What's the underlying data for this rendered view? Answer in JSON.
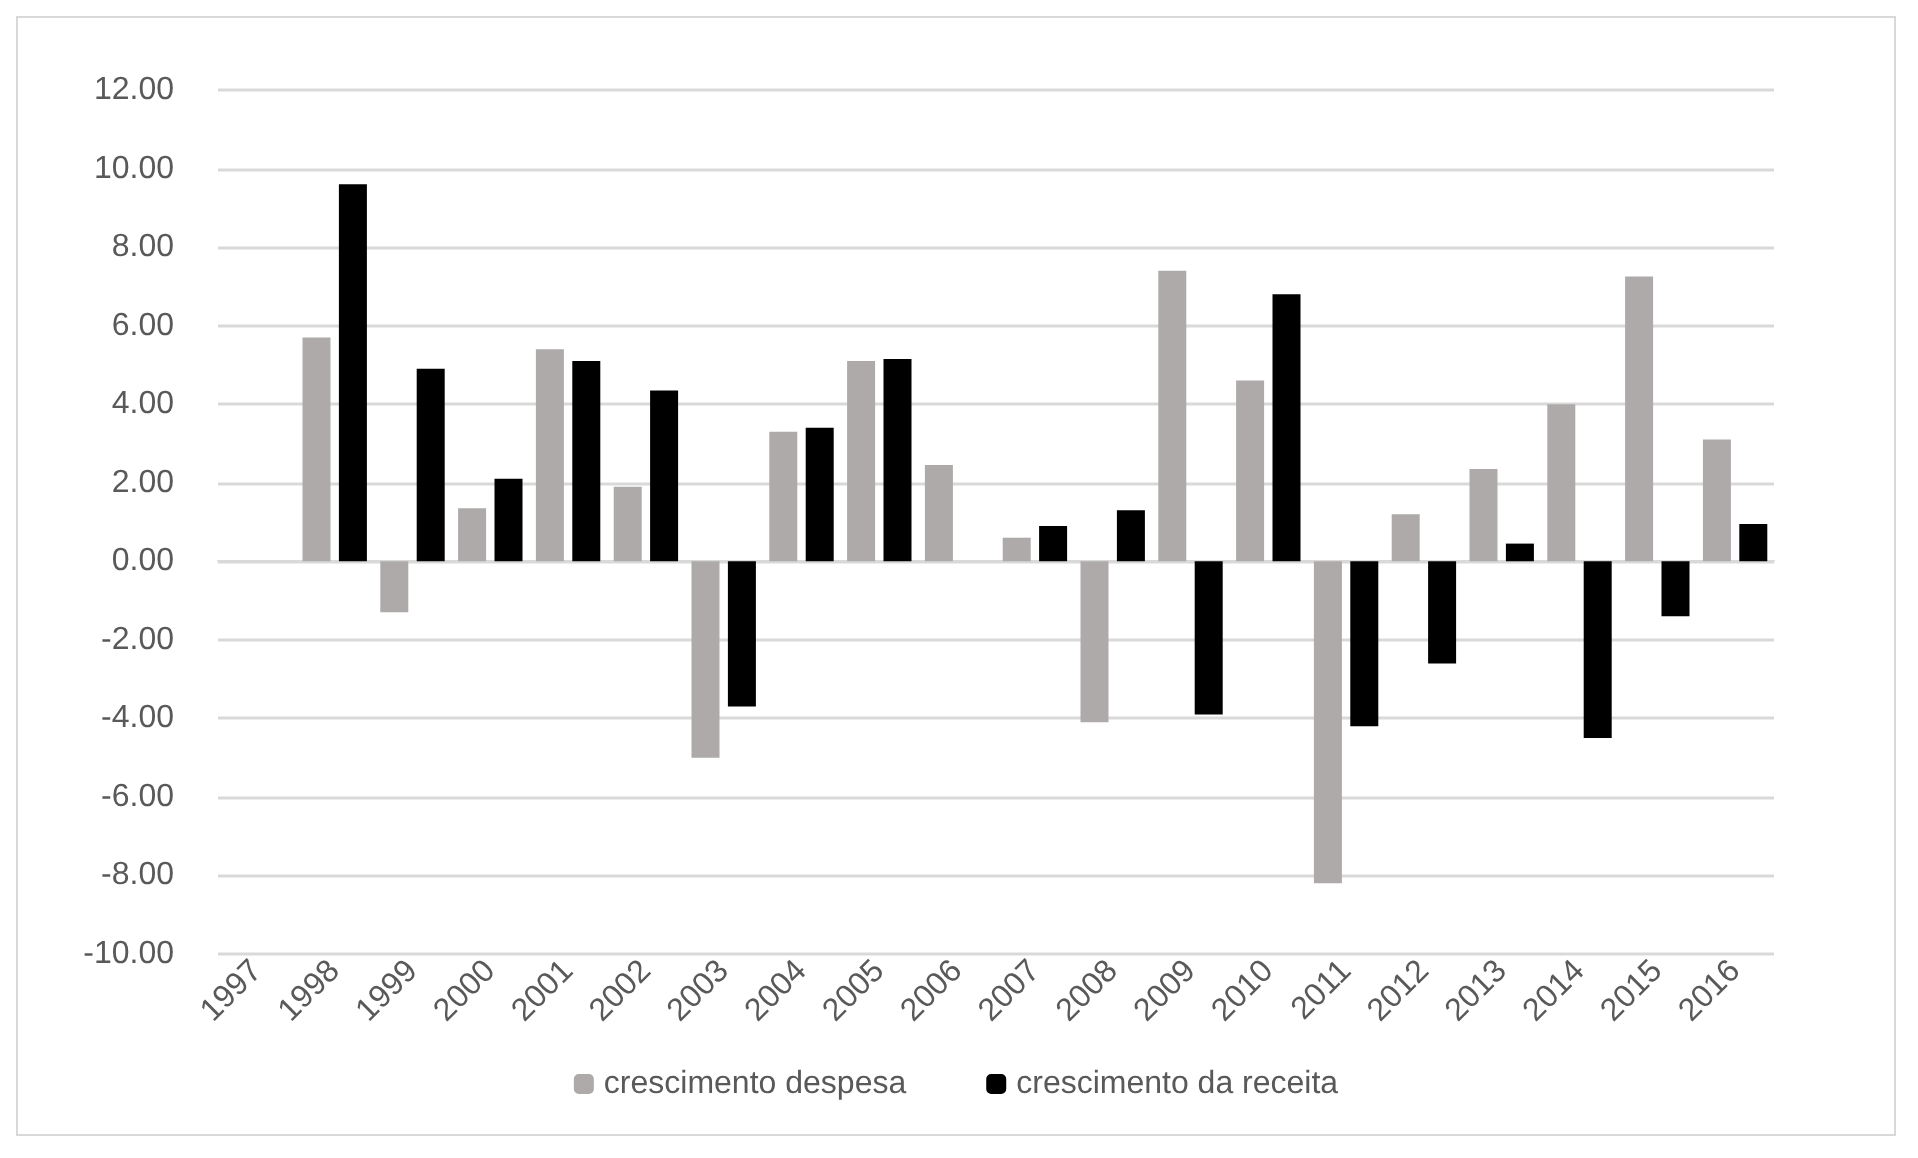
{
  "chart_data": {
    "type": "bar",
    "categories": [
      "1997",
      "1998",
      "1999",
      "2000",
      "2001",
      "2002",
      "2003",
      "2004",
      "2005",
      "2006",
      "2007",
      "2008",
      "2009",
      "2010",
      "2011",
      "2012",
      "2013",
      "2014",
      "2015",
      "2016"
    ],
    "series": [
      {
        "name": "crescimento despesa",
        "color": "#aeaaaa",
        "values": [
          null,
          5.7,
          -1.3,
          1.35,
          5.4,
          1.9,
          -5.0,
          3.3,
          5.1,
          2.45,
          0.6,
          -4.1,
          7.4,
          4.6,
          -8.2,
          1.2,
          2.35,
          4.0,
          7.25,
          3.1
        ]
      },
      {
        "name": "crescimento da receita",
        "color": "#000000",
        "values": [
          null,
          9.6,
          4.9,
          2.1,
          5.1,
          4.35,
          -3.7,
          3.4,
          5.15,
          null,
          0.9,
          1.3,
          -3.9,
          6.8,
          -4.2,
          -2.6,
          0.45,
          -4.5,
          -1.4,
          0.95
        ]
      }
    ],
    "ylim": [
      -10,
      12
    ],
    "yticks": [
      {
        "value": -10,
        "label": "-10.00"
      },
      {
        "value": -8,
        "label": "-8.00"
      },
      {
        "value": -6,
        "label": "-6.00"
      },
      {
        "value": -4,
        "label": "-4.00"
      },
      {
        "value": -2,
        "label": "-2.00"
      },
      {
        "value": 0,
        "label": "0.00"
      },
      {
        "value": 2,
        "label": "2.00"
      },
      {
        "value": 4,
        "label": "4.00"
      },
      {
        "value": 6,
        "label": "6.00"
      },
      {
        "value": 8,
        "label": "8.00"
      },
      {
        "value": 10,
        "label": "10.00"
      },
      {
        "value": 12,
        "label": "12.00"
      }
    ],
    "grid": "y",
    "legend": "bottom"
  }
}
